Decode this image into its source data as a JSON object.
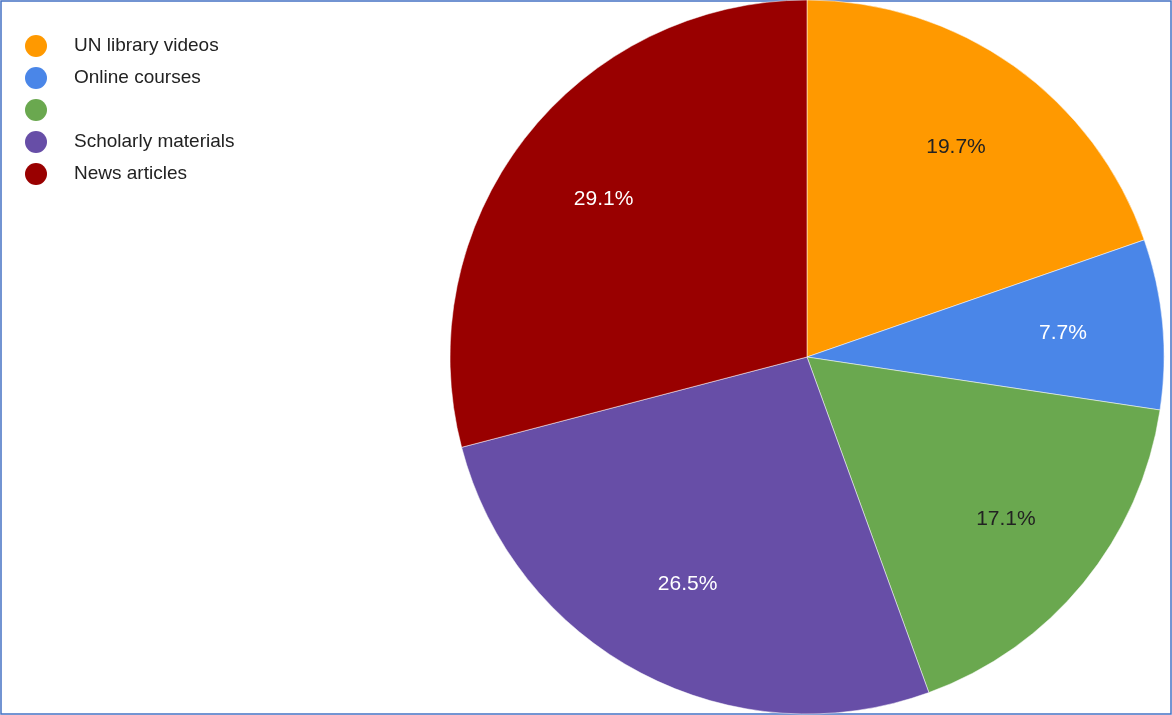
{
  "chart_data": {
    "type": "pie",
    "categories": [
      "UN library videos",
      "Online courses",
      null,
      "Scholarly materials",
      "News articles"
    ],
    "values": [
      19.7,
      7.7,
      17.1,
      26.5,
      29.1
    ],
    "colors": [
      "#ff9900",
      "#4a86e8",
      "#6aa84f",
      "#674ea7",
      "#990000"
    ],
    "value_labels": [
      "19.7%",
      "7.7%",
      "17.1%",
      "26.5%",
      "29.1%"
    ],
    "legend": "top left"
  }
}
